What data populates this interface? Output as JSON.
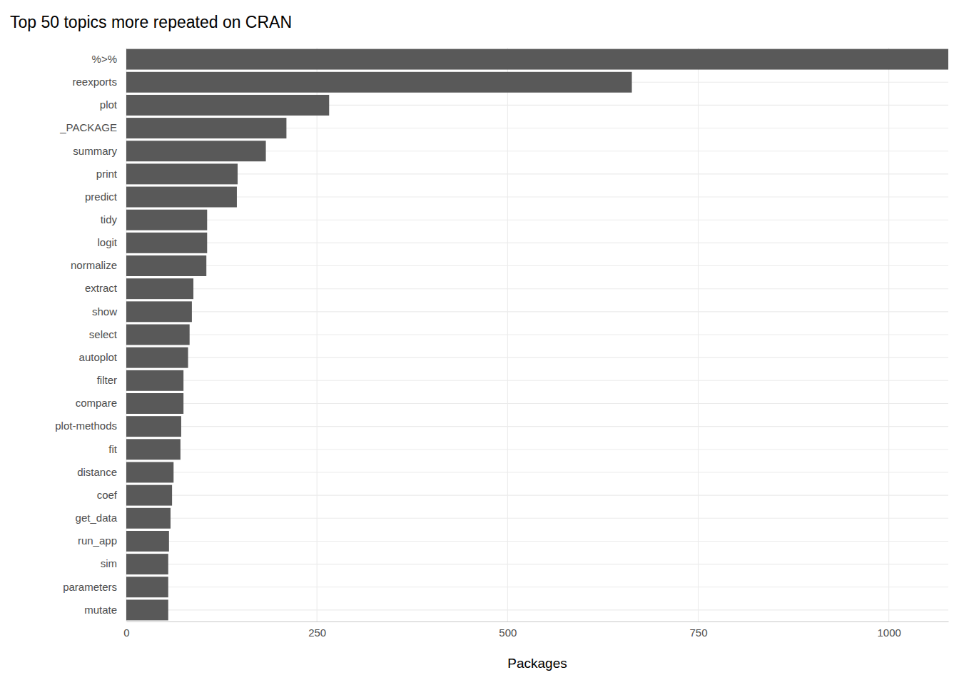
{
  "chart_data": {
    "type": "bar",
    "orientation": "horizontal",
    "title": "Top 50 topics more repeated on CRAN",
    "x_label": "Packages",
    "categories": [
      "%>%",
      "reexports",
      "plot",
      "_PACKAGE",
      "summary",
      "print",
      "predict",
      "tidy",
      "logit",
      "normalize",
      "extract",
      "show",
      "select",
      "autoplot",
      "filter",
      "compare",
      "plot-methods",
      "fit",
      "distance",
      "coef",
      "get_data",
      "run_app",
      "sim",
      "parameters",
      "mutate"
    ],
    "values": [
      1078,
      663,
      266,
      210,
      183,
      146,
      145,
      106,
      106,
      105,
      88,
      86,
      83,
      81,
      75,
      75,
      72,
      71,
      62,
      60,
      58,
      56,
      55,
      55,
      55
    ],
    "color": "#595959",
    "xlim": [
      0,
      1078
    ],
    "xticks": [
      0,
      250,
      500,
      750,
      1000
    ],
    "grid": true
  }
}
